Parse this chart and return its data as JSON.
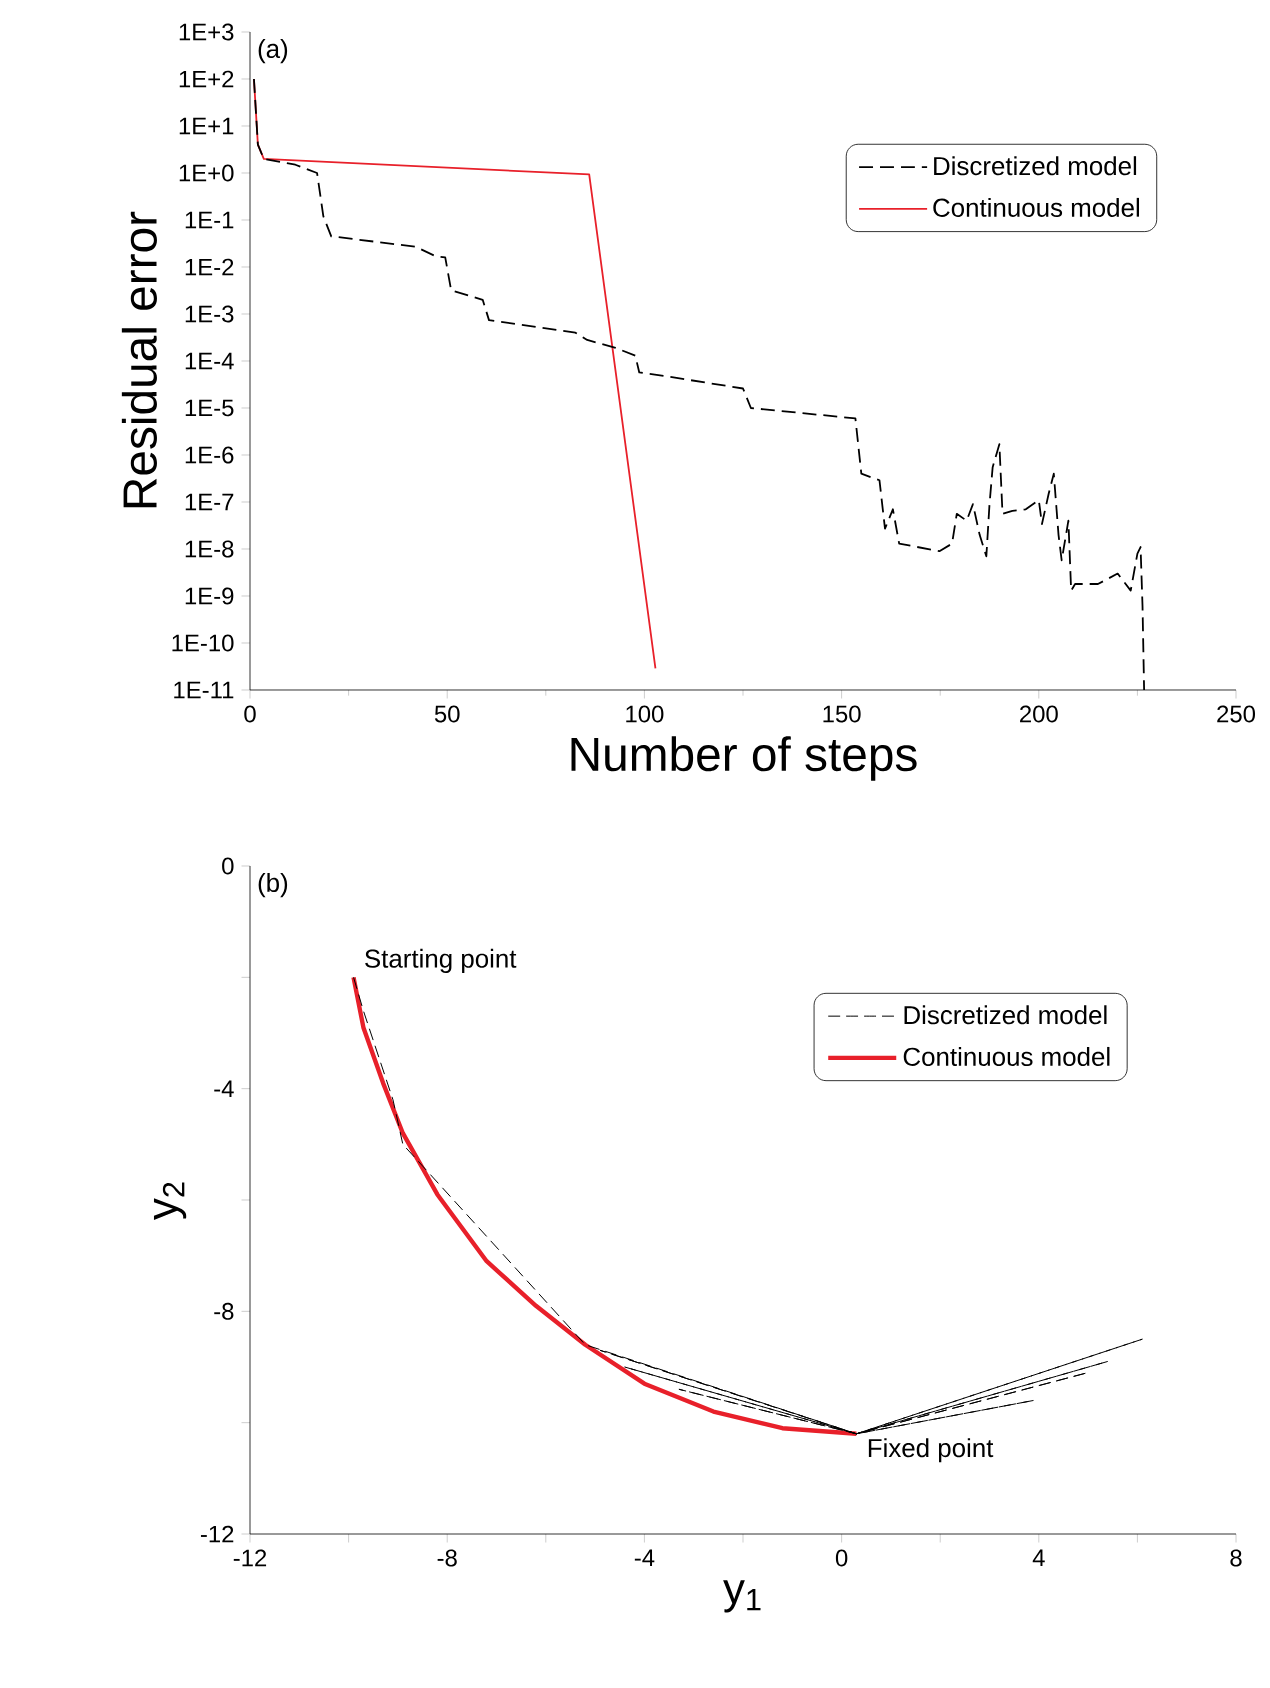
{
  "chart_data": [
    {
      "type": "line",
      "xlabel": "Number of steps",
      "ylabel": "Residual error",
      "log": "y",
      "legend": "top right",
      "grid": false,
      "xlim": [
        0,
        250
      ],
      "xticks": [
        0,
        50,
        100,
        150,
        200,
        250
      ],
      "ylim": [
        1e-11,
        1000
      ],
      "yticks": [
        {
          "value": 1000,
          "label": "1E+3"
        },
        {
          "value": 100,
          "label": "1E+2"
        },
        {
          "value": 10,
          "label": "1E+1"
        },
        {
          "value": 1,
          "label": "1E+0"
        },
        {
          "value": 0.1,
          "label": "1E-1"
        },
        {
          "value": 0.01,
          "label": "1E-2"
        },
        {
          "value": 0.001,
          "label": "1E-3"
        },
        {
          "value": 0.0001,
          "label": "1E-4"
        },
        {
          "value": 1e-05,
          "label": "1E-5"
        },
        {
          "value": 1e-06,
          "label": "1E-6"
        },
        {
          "value": 1e-07,
          "label": "1E-7"
        },
        {
          "value": 1e-08,
          "label": "1E-8"
        },
        {
          "value": 1e-09,
          "label": "1E-9"
        },
        {
          "value": 1e-10,
          "label": "1E-10"
        },
        {
          "value": 1e-11,
          "label": "1E-11"
        }
      ],
      "annotations": [
        "(a)"
      ],
      "series": [
        {
          "name": "Discretized model",
          "color": "#000000",
          "line_style": "dashed",
          "x": [
            1,
            2,
            3.5,
            11.5,
            17,
            18.6,
            20.6,
            42,
            47,
            49.5,
            51,
            59,
            60.6,
            82.5,
            85.5,
            92.7,
            97.7,
            98.7,
            105,
            125,
            127,
            153.5,
            155,
            159.6,
            161,
            163,
            164.6,
            174.8,
            178,
            179.2,
            181.7,
            183.3,
            185,
            186.7,
            187.5,
            188.3,
            190,
            190.8,
            193.3,
            196.7,
            200,
            200.8,
            202.5,
            203.8,
            205,
            205.8,
            206.7,
            207.5,
            208.2,
            209.2,
            215,
            220,
            223.3,
            225,
            225.8,
            226.3,
            226.7
          ],
          "values": [
            100,
            4,
            2,
            1.5,
            1,
            0.12,
            0.045,
            0.027,
            0.017,
            0.016,
            0.0032,
            0.002,
            0.00074,
            0.0004,
            0.00028,
            0.00019,
            0.00013,
            5.7e-05,
            4.8e-05,
            2.6e-05,
            1e-05,
            6e-06,
            4e-07,
            2.9e-07,
            2.7e-08,
            7e-08,
            1.3e-08,
            9e-09,
            1.3e-08,
            5.6e-08,
            4e-08,
            9e-08,
            2e-08,
            7e-09,
            9e-08,
            5.5e-07,
            1.7e-06,
            5.6e-08,
            6.5e-08,
            7e-08,
            1.1e-07,
            3.4e-08,
            1.5e-07,
            4e-07,
            2e-08,
            5.7e-09,
            1.6e-08,
            4e-08,
            1.3e-09,
            1.8e-09,
            1.8e-09,
            3e-09,
            1.3e-09,
            8e-09,
            1.1e-08,
            6e-10,
            1e-11
          ]
        },
        {
          "name": "Continuous model",
          "color": "#e8202a",
          "line_style": "solid",
          "x": [
            1,
            2,
            3.5,
            86,
            102.8
          ],
          "values": [
            100,
            4,
            2,
            0.93,
            2.9e-11
          ]
        }
      ]
    },
    {
      "type": "line",
      "xlabel": "y$_{1}$",
      "ylabel": "y$_{2}$",
      "legend": "top right",
      "grid": false,
      "xlim": [
        -12,
        8
      ],
      "xticks": [
        -12,
        {
          "value": -10,
          "label": null
        },
        -8,
        {
          "value": -6,
          "label": null
        },
        -4,
        {
          "value": -2,
          "label": null
        },
        0,
        {
          "value": 2,
          "label": null
        },
        4,
        {
          "value": 6,
          "label": null
        },
        8
      ],
      "ylim": [
        -12,
        0
      ],
      "yticks": [
        -12,
        {
          "value": -10,
          "label": null
        },
        -8,
        {
          "value": -6,
          "label": null
        },
        -4,
        {
          "value": -2,
          "label": null
        },
        0
      ],
      "annotations": [
        "(b)",
        {
          "text": "Starting point",
          "x": -9.9,
          "y": -2.0
        },
        {
          "text": "Fixed point",
          "x": 0.3,
          "y": -10.2
        }
      ],
      "series": [
        {
          "name": "Discretized model",
          "color": "#000000",
          "line_style": "dashed",
          "x": [
            -9.9,
            -9.7,
            -9.1,
            -8.9,
            -5.2,
            0.3,
            6.1,
            0.3,
            -4.9,
            0.3,
            5.4,
            0.3,
            -4.4,
            0.3,
            5.0,
            0.3,
            -3.3,
            0.3,
            3.9,
            0.3
          ],
          "values": [
            -2.0,
            -2.6,
            -4.2,
            -5.0,
            -8.6,
            -10.2,
            -8.5,
            -10.2,
            -8.7,
            -10.2,
            -8.9,
            -10.2,
            -9.0,
            -10.2,
            -9.1,
            -10.2,
            -9.4,
            -10.2,
            -9.6,
            -10.2
          ]
        },
        {
          "name": "Continuous model",
          "color": "#e8202a",
          "line_style": "solid",
          "x": [
            -9.9,
            -9.7,
            -9.3,
            -8.9,
            -8.2,
            -7.2,
            -6.2,
            -5.2,
            -4.0,
            -2.6,
            -1.2,
            0.3
          ],
          "values": [
            -2.0,
            -2.9,
            -3.9,
            -4.8,
            -5.9,
            -7.1,
            -7.9,
            -8.6,
            -9.3,
            -9.8,
            -10.1,
            -10.2
          ]
        }
      ]
    }
  ]
}
